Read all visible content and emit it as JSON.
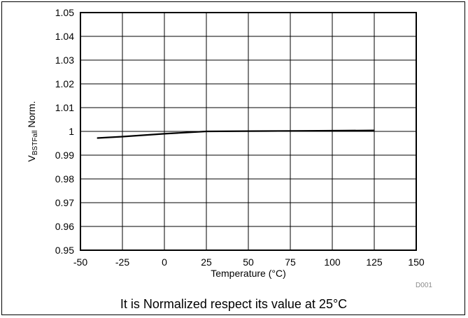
{
  "chart_data": {
    "type": "line",
    "x": [
      -40,
      -25,
      0,
      25,
      50,
      75,
      100,
      125
    ],
    "series": [
      {
        "values": [
          0.9972,
          0.9978,
          0.999,
          1.0,
          1.0001,
          1.0002,
          1.0003,
          1.0004
        ]
      }
    ],
    "xlabel": "Temperature (°C)",
    "ylabel_main": "V",
    "ylabel_sub": "BSTFall",
    "ylabel_suffix": " Norm.",
    "xlim": [
      -50,
      150
    ],
    "ylim": [
      0.95,
      1.05
    ],
    "xticks": [
      -50,
      -25,
      0,
      25,
      50,
      75,
      100,
      125,
      150
    ],
    "xtick_labels": [
      "-50",
      "-25",
      "0",
      "25",
      "50",
      "75",
      "100",
      "125",
      "150"
    ],
    "yticks": [
      0.95,
      0.96,
      0.97,
      0.98,
      0.99,
      1.0,
      1.01,
      1.02,
      1.03,
      1.04,
      1.05
    ],
    "ytick_labels": [
      "0.95",
      "0.96",
      "0.97",
      "0.98",
      "0.99",
      "1",
      "1.01",
      "1.02",
      "1.03",
      "1.04",
      "1.05"
    ],
    "grid": true,
    "figure_code": "D001",
    "line_color": "#000000"
  },
  "caption": "It is Normalized respect its value at 25°C"
}
